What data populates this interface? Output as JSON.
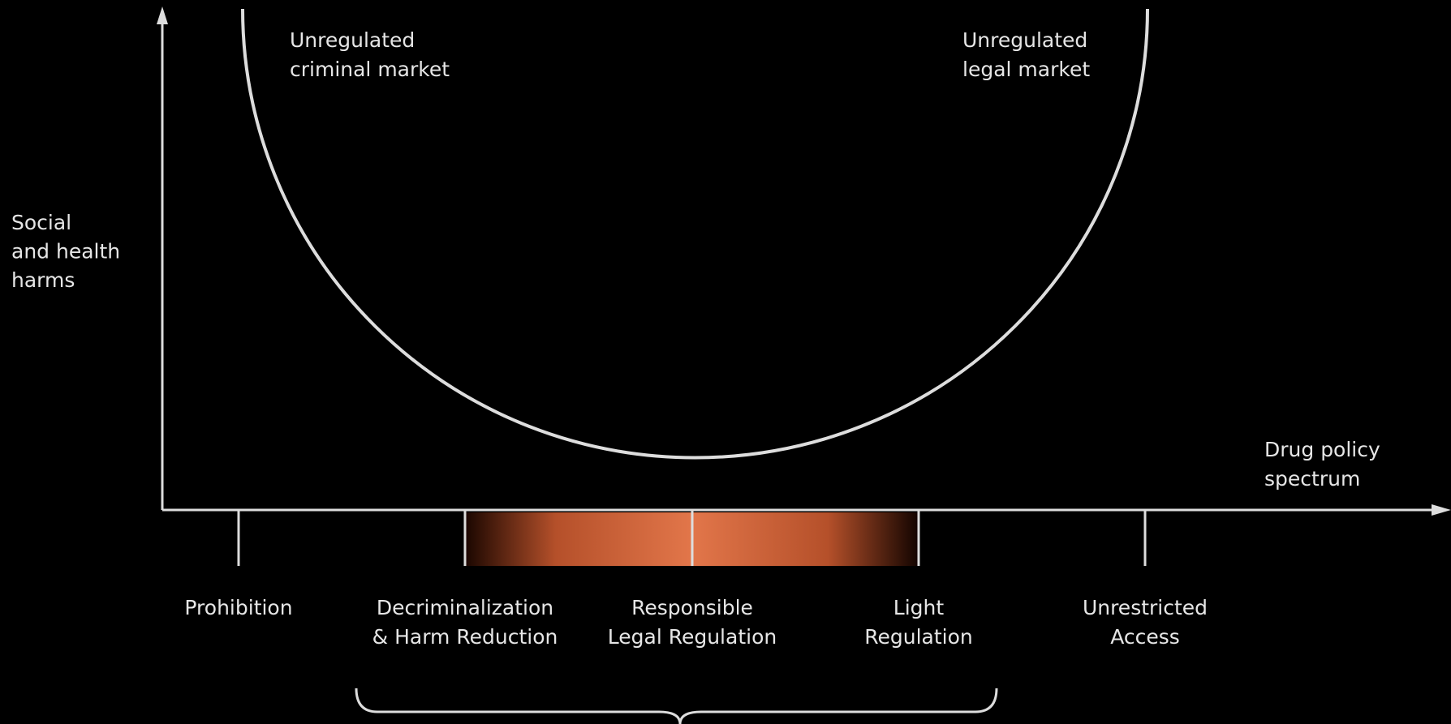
{
  "y_axis_label": [
    "Social",
    "and health",
    "harms"
  ],
  "x_axis_label": [
    "Drug policy",
    "spectrum"
  ],
  "curve_labels": {
    "left": [
      "Unregulated",
      "criminal market"
    ],
    "right": [
      "Unregulated",
      "legal market"
    ]
  },
  "spectrum": [
    {
      "label": [
        "Prohibition"
      ]
    },
    {
      "label": [
        "Decriminalization",
        "& Harm Reduction"
      ]
    },
    {
      "label": [
        "Responsible",
        "Legal Regulation"
      ]
    },
    {
      "label": [
        "Light",
        "Regulation"
      ]
    },
    {
      "label": [
        "Unrestricted",
        "Access"
      ]
    }
  ]
}
